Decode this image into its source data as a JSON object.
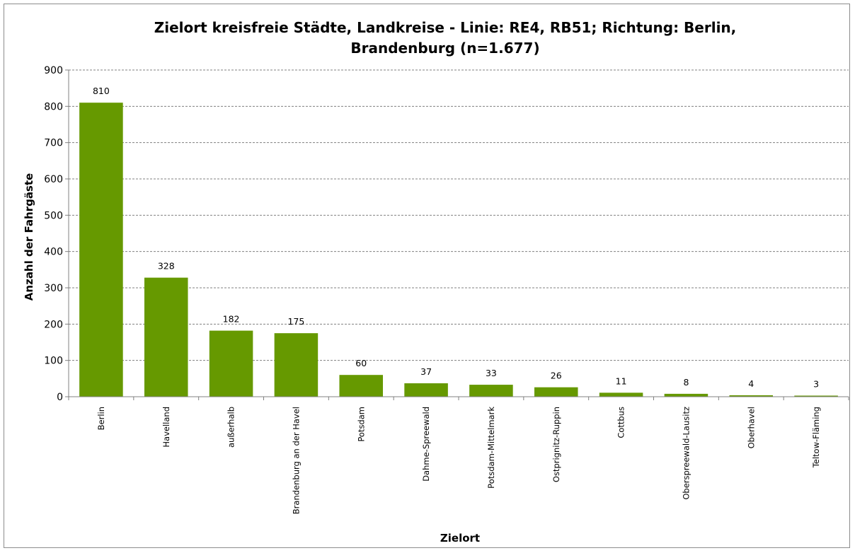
{
  "chart_data": {
    "type": "bar",
    "title_lines": [
      "Zielort kreisfreie Städte, Landkreise - Linie: RE4, RB51; Richtung: Berlin,",
      "Brandenburg (n=1.677)"
    ],
    "xlabel": "Zielort",
    "ylabel": "Anzahl der Fahrgäste",
    "ylim": [
      0,
      900
    ],
    "yticks": [
      0,
      100,
      200,
      300,
      400,
      500,
      600,
      700,
      800,
      900
    ],
    "grid": true,
    "legend": "none",
    "bar_color": "#669900",
    "categories": [
      "Berlin",
      "Havelland",
      "außerhalb",
      "Brandenburg an der Havel",
      "Potsdam",
      "Dahme-Spreewald",
      "Potsdam-Mittelmark",
      "Ostprignitz-Ruppin",
      "Cottbus",
      "Oberspreewald-Lausitz",
      "Oberhavel",
      "Teltow-Fläming"
    ],
    "values": [
      810,
      328,
      182,
      175,
      60,
      37,
      33,
      26,
      11,
      8,
      4,
      3
    ]
  }
}
